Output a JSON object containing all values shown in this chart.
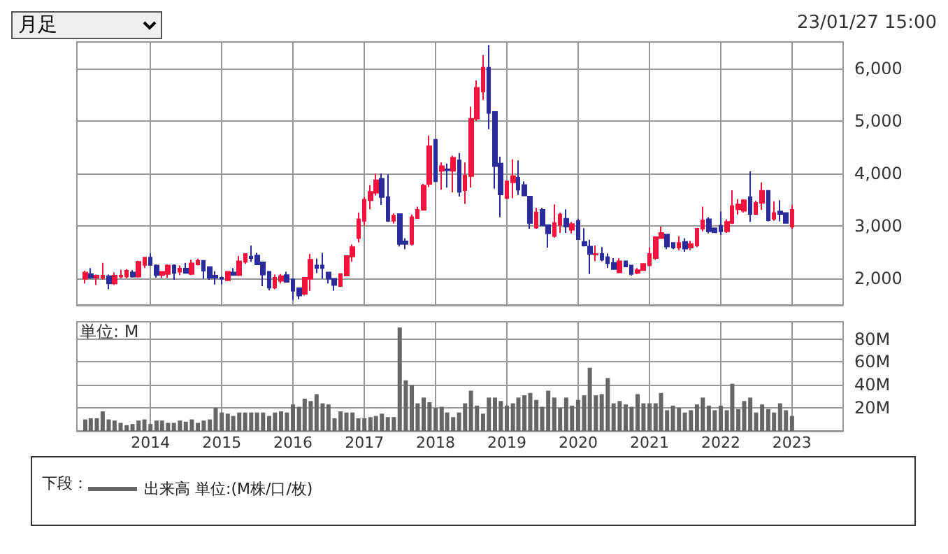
{
  "chart_data": [
    {
      "type": "candlestick",
      "annotations": [
        "月足",
        "23/01/27 15:00"
      ],
      "grid": true,
      "tick_labels": "y",
      "xlim": [
        "2012-12-20",
        "2023-09-20"
      ],
      "xticks": [
        "2014",
        "2015",
        "2016",
        "2017",
        "2018",
        "2019",
        "2020",
        "2021",
        "2022",
        "2023"
      ],
      "ylim": [
        1500,
        6500
      ],
      "yticks": [
        {
          "value": 2000,
          "label": "2,000"
        },
        {
          "value": 3000,
          "label": "3,000"
        },
        {
          "value": 4000,
          "label": "4,000"
        },
        {
          "value": 5000,
          "label": "5,000"
        },
        {
          "value": 6000,
          "label": "6,000"
        }
      ],
      "x": [
        "2013-02",
        "2013-03",
        "2013-04",
        "2013-05",
        "2013-06",
        "2013-07",
        "2013-08",
        "2013-09",
        "2013-10",
        "2013-11",
        "2013-12",
        "2014-01",
        "2014-02",
        "2014-03",
        "2014-04",
        "2014-05",
        "2014-06",
        "2014-07",
        "2014-08",
        "2014-09",
        "2014-10",
        "2014-11",
        "2014-12",
        "2015-01",
        "2015-02",
        "2015-03",
        "2015-04",
        "2015-05",
        "2015-06",
        "2015-07",
        "2015-08",
        "2015-09",
        "2015-10",
        "2015-11",
        "2015-12",
        "2016-01",
        "2016-02",
        "2016-03",
        "2016-04",
        "2016-05",
        "2016-06",
        "2016-07",
        "2016-08",
        "2016-09",
        "2016-10",
        "2016-11",
        "2016-12",
        "2017-01",
        "2017-02",
        "2017-03",
        "2017-04",
        "2017-05",
        "2017-06",
        "2017-07",
        "2017-08",
        "2017-09",
        "2017-10",
        "2017-11",
        "2017-12",
        "2018-01",
        "2018-02",
        "2018-03",
        "2018-04",
        "2018-05",
        "2018-06",
        "2018-07",
        "2018-08",
        "2018-09",
        "2018-10",
        "2018-11",
        "2018-12",
        "2019-01",
        "2019-02",
        "2019-03",
        "2019-04",
        "2019-05",
        "2019-06",
        "2019-07",
        "2019-08",
        "2019-09",
        "2019-10",
        "2019-11",
        "2019-12",
        "2020-01",
        "2020-02",
        "2020-03",
        "2020-04",
        "2020-05",
        "2020-06",
        "2020-07",
        "2020-08",
        "2020-09",
        "2020-10",
        "2020-11",
        "2020-12",
        "2021-01",
        "2021-02",
        "2021-03",
        "2021-04",
        "2021-05",
        "2021-06",
        "2021-07",
        "2021-08",
        "2021-09",
        "2021-10",
        "2021-11",
        "2021-12",
        "2022-01",
        "2022-02",
        "2022-03",
        "2022-04",
        "2022-05",
        "2022-06",
        "2022-07",
        "2022-08",
        "2022-09",
        "2022-10",
        "2022-11",
        "2022-12",
        "2023-01"
      ],
      "ohlc": [
        [
          2000,
          2150,
          1910,
          2120
        ],
        [
          2090,
          2200,
          2000,
          2020
        ],
        [
          2020,
          2080,
          1880,
          2060
        ],
        [
          2020,
          2300,
          1980,
          2060
        ],
        [
          2050,
          2080,
          1800,
          1910
        ],
        [
          1910,
          2120,
          1880,
          2060
        ],
        [
          2040,
          2170,
          2010,
          2060
        ],
        [
          2040,
          2180,
          2010,
          2150
        ],
        [
          2120,
          2160,
          2020,
          2040
        ],
        [
          2040,
          2340,
          2020,
          2320
        ],
        [
          2260,
          2400,
          2200,
          2400
        ],
        [
          2400,
          2480,
          2250,
          2260
        ],
        [
          2250,
          2270,
          2020,
          2070
        ],
        [
          2070,
          2140,
          2020,
          2130
        ],
        [
          2090,
          2270,
          2020,
          2250
        ],
        [
          2250,
          2270,
          1980,
          2110
        ],
        [
          2130,
          2250,
          2070,
          2190
        ],
        [
          2190,
          2300,
          2100,
          2110
        ],
        [
          2090,
          2360,
          2070,
          2290
        ],
        [
          2270,
          2380,
          2250,
          2340
        ],
        [
          2340,
          2340,
          2000,
          2150
        ],
        [
          2220,
          2230,
          1980,
          2020
        ],
        [
          2060,
          2140,
          1890,
          2020
        ],
        [
          2020,
          2040,
          1890,
          2000
        ],
        [
          1970,
          2140,
          1970,
          2130
        ],
        [
          2120,
          2200,
          2060,
          2070
        ],
        [
          2070,
          2430,
          2050,
          2330
        ],
        [
          2320,
          2480,
          2280,
          2470
        ],
        [
          2420,
          2630,
          2320,
          2390
        ],
        [
          2440,
          2490,
          2270,
          2270
        ],
        [
          2310,
          2320,
          1860,
          2080
        ],
        [
          2130,
          2140,
          1780,
          1830
        ],
        [
          1830,
          2080,
          1800,
          2020
        ],
        [
          1960,
          2090,
          1910,
          2050
        ],
        [
          2070,
          2130,
          1940,
          1940
        ],
        [
          1990,
          2000,
          1590,
          1770
        ],
        [
          1820,
          1820,
          1610,
          1680
        ],
        [
          1710,
          2020,
          1680,
          2020
        ],
        [
          2000,
          2470,
          1770,
          2360
        ],
        [
          2250,
          2380,
          2110,
          2200
        ],
        [
          2250,
          2490,
          2000,
          2200
        ],
        [
          2120,
          2120,
          1910,
          2000
        ],
        [
          2000,
          2000,
          1770,
          1880
        ],
        [
          1860,
          2090,
          1860,
          2090
        ],
        [
          2060,
          2430,
          2050,
          2430
        ],
        [
          2420,
          2650,
          2320,
          2600
        ],
        [
          2770,
          3260,
          2690,
          3130
        ],
        [
          3100,
          3550,
          3010,
          3500
        ],
        [
          3490,
          3780,
          3320,
          3650
        ],
        [
          3630,
          4000,
          3580,
          3870
        ],
        [
          3900,
          4000,
          3400,
          3550
        ],
        [
          3550,
          3980,
          3080,
          3100
        ],
        [
          3100,
          3240,
          3050,
          3200
        ],
        [
          3230,
          3230,
          2610,
          2660
        ],
        [
          2710,
          2770,
          2560,
          2660
        ],
        [
          2660,
          3220,
          2630,
          3170
        ],
        [
          3150,
          3370,
          3150,
          3310
        ],
        [
          3310,
          3800,
          3310,
          3770
        ],
        [
          3800,
          4720,
          3740,
          4520
        ],
        [
          4640,
          4640,
          3850,
          3850
        ],
        [
          4050,
          4210,
          3690,
          4140
        ],
        [
          4080,
          4190,
          3730,
          4060
        ],
        [
          4050,
          4340,
          3640,
          4300
        ],
        [
          4250,
          4390,
          3560,
          3650
        ],
        [
          3680,
          4210,
          3420,
          3960
        ],
        [
          3950,
          5270,
          3730,
          5040
        ],
        [
          5040,
          5770,
          5000,
          5630
        ],
        [
          5560,
          6250,
          5400,
          6010
        ],
        [
          6010,
          6440,
          4840,
          5150
        ],
        [
          5170,
          5170,
          3710,
          4140
        ],
        [
          4190,
          4320,
          3170,
          3600
        ],
        [
          3530,
          3850,
          3510,
          3850
        ],
        [
          3830,
          4270,
          3530,
          3950
        ],
        [
          3920,
          4250,
          3590,
          3690
        ],
        [
          3780,
          3850,
          3580,
          3580
        ],
        [
          3560,
          3560,
          2950,
          3060
        ],
        [
          2970,
          3350,
          2950,
          3260
        ],
        [
          3310,
          3350,
          3000,
          3010
        ],
        [
          3020,
          3020,
          2590,
          2860
        ],
        [
          2810,
          3410,
          2780,
          3060
        ],
        [
          3020,
          3260,
          2870,
          3220
        ],
        [
          3140,
          3320,
          2870,
          2990
        ],
        [
          2930,
          3080,
          2860,
          3040
        ],
        [
          3100,
          3140,
          2750,
          2750
        ],
        [
          2700,
          2960,
          2610,
          2630
        ],
        [
          2610,
          2740,
          2090,
          2470
        ],
        [
          2460,
          2630,
          2330,
          2470
        ],
        [
          2470,
          2600,
          2330,
          2360
        ],
        [
          2410,
          2480,
          2200,
          2290
        ],
        [
          2300,
          2390,
          2180,
          2180
        ],
        [
          2120,
          2390,
          2120,
          2330
        ],
        [
          2330,
          2330,
          2230,
          2230
        ],
        [
          2250,
          2250,
          2060,
          2090
        ],
        [
          2110,
          2200,
          2090,
          2160
        ],
        [
          2160,
          2280,
          2160,
          2280
        ],
        [
          2250,
          2590,
          2240,
          2470
        ],
        [
          2390,
          2790,
          2360,
          2790
        ],
        [
          2770,
          2990,
          2770,
          2870
        ],
        [
          2840,
          2840,
          2560,
          2610
        ],
        [
          2680,
          2680,
          2560,
          2590
        ],
        [
          2590,
          2810,
          2540,
          2680
        ],
        [
          2700,
          2770,
          2510,
          2570
        ],
        [
          2590,
          2720,
          2540,
          2660
        ],
        [
          2630,
          2960,
          2600,
          2950
        ],
        [
          2950,
          3370,
          2900,
          3110
        ],
        [
          3130,
          3170,
          2860,
          2900
        ],
        [
          2960,
          2960,
          2870,
          2880
        ],
        [
          3010,
          3280,
          2830,
          2900
        ],
        [
          2900,
          3130,
          2870,
          3080
        ],
        [
          3060,
          3680,
          3040,
          3380
        ],
        [
          3320,
          3510,
          3220,
          3410
        ],
        [
          3290,
          3510,
          3260,
          3490
        ],
        [
          3550,
          4040,
          3080,
          3230
        ],
        [
          3230,
          3480,
          3220,
          3440
        ],
        [
          3440,
          3830,
          3310,
          3670
        ],
        [
          3670,
          3670,
          3090,
          3110
        ],
        [
          3140,
          3470,
          3100,
          3250
        ],
        [
          3280,
          3490,
          3090,
          3230
        ],
        [
          3250,
          3250,
          3050,
          3060
        ],
        [
          2990,
          3400,
          2950,
          3310
        ]
      ]
    },
    {
      "type": "bar",
      "grid": true,
      "legend": "bottom",
      "legend_title": "下段：",
      "ylabel": "単位: M",
      "xlim": [
        "2012-12-20",
        "2023-09-20"
      ],
      "xticks": [
        "2014",
        "2015",
        "2016",
        "2017",
        "2018",
        "2019",
        "2020",
        "2021",
        "2022",
        "2023"
      ],
      "ylim": [
        0,
        95
      ],
      "yticks": [
        {
          "value": 20,
          "label": "20M"
        },
        {
          "value": 40,
          "label": "40M"
        },
        {
          "value": 60,
          "label": "60M"
        },
        {
          "value": 80,
          "label": "80M"
        }
      ],
      "x": [
        "2013-02",
        "2013-03",
        "2013-04",
        "2013-05",
        "2013-06",
        "2013-07",
        "2013-08",
        "2013-09",
        "2013-10",
        "2013-11",
        "2013-12",
        "2014-01",
        "2014-02",
        "2014-03",
        "2014-04",
        "2014-05",
        "2014-06",
        "2014-07",
        "2014-08",
        "2014-09",
        "2014-10",
        "2014-11",
        "2014-12",
        "2015-01",
        "2015-02",
        "2015-03",
        "2015-04",
        "2015-05",
        "2015-06",
        "2015-07",
        "2015-08",
        "2015-09",
        "2015-10",
        "2015-11",
        "2015-12",
        "2016-01",
        "2016-02",
        "2016-03",
        "2016-04",
        "2016-05",
        "2016-06",
        "2016-07",
        "2016-08",
        "2016-09",
        "2016-10",
        "2016-11",
        "2016-12",
        "2017-01",
        "2017-02",
        "2017-03",
        "2017-04",
        "2017-05",
        "2017-06",
        "2017-07",
        "2017-08",
        "2017-09",
        "2017-10",
        "2017-11",
        "2017-12",
        "2018-01",
        "2018-02",
        "2018-03",
        "2018-04",
        "2018-05",
        "2018-06",
        "2018-07",
        "2018-08",
        "2018-09",
        "2018-10",
        "2018-11",
        "2018-12",
        "2019-01",
        "2019-02",
        "2019-03",
        "2019-04",
        "2019-05",
        "2019-06",
        "2019-07",
        "2019-08",
        "2019-09",
        "2019-10",
        "2019-11",
        "2019-12",
        "2020-01",
        "2020-02",
        "2020-03",
        "2020-04",
        "2020-05",
        "2020-06",
        "2020-07",
        "2020-08",
        "2020-09",
        "2020-10",
        "2020-11",
        "2020-12",
        "2021-01",
        "2021-02",
        "2021-03",
        "2021-04",
        "2021-05",
        "2021-06",
        "2021-07",
        "2021-08",
        "2021-09",
        "2021-10",
        "2021-11",
        "2021-12",
        "2022-01",
        "2022-02",
        "2022-03",
        "2022-04",
        "2022-05",
        "2022-06",
        "2022-07",
        "2022-08",
        "2022-09",
        "2022-10",
        "2022-11",
        "2022-12",
        "2023-01"
      ],
      "series": [
        {
          "name": "出来高 単位:(M株/口/枚)",
          "color": "#666666",
          "values": [
            10,
            11,
            11,
            17,
            10,
            9,
            7,
            5,
            6,
            9,
            10,
            6,
            9,
            9,
            7,
            7,
            9,
            8,
            10,
            7,
            9,
            10,
            20,
            16,
            15,
            13,
            16,
            16,
            16,
            16,
            16,
            13,
            16,
            17,
            16,
            23,
            21,
            28,
            26,
            32,
            24,
            23,
            11,
            17,
            16,
            16,
            11,
            11,
            12,
            13,
            15,
            12,
            12,
            90,
            44,
            40,
            24,
            29,
            25,
            20,
            21,
            16,
            12,
            16,
            24,
            35,
            22,
            15,
            29,
            29,
            26,
            22,
            24,
            29,
            31,
            33,
            27,
            21,
            35,
            29,
            20,
            29,
            22,
            27,
            31,
            55,
            31,
            32,
            46,
            24,
            26,
            23,
            21,
            32,
            24,
            24,
            24,
            33,
            18,
            22,
            20,
            16,
            18,
            23,
            29,
            22,
            18,
            22,
            18,
            41,
            19,
            26,
            29,
            16,
            23,
            19,
            16,
            24,
            18,
            13
          ]
        }
      ]
    }
  ]
}
